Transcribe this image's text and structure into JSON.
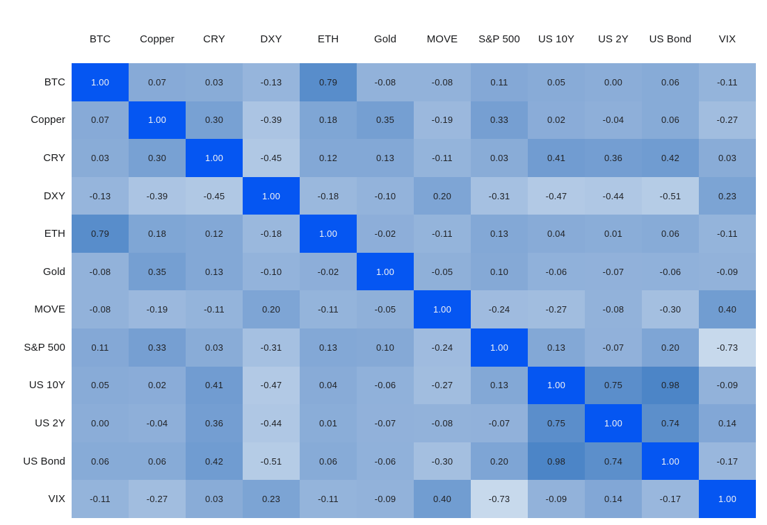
{
  "chart_data": {
    "type": "heatmap",
    "title": "",
    "subtitle": "",
    "legend": "none",
    "grid": "off",
    "value_format": "2 decimal places",
    "row_labels": [
      "BTC",
      "Copper",
      "CRY",
      "DXY",
      "ETH",
      "Gold",
      "MOVE",
      "S&P 500",
      "US 10Y",
      "US 2Y",
      "US Bond",
      "VIX"
    ],
    "col_labels": [
      "BTC",
      "Copper",
      "CRY",
      "DXY",
      "ETH",
      "Gold",
      "MOVE",
      "S&P 500",
      "US 10Y",
      "US 2Y",
      "US Bond",
      "VIX"
    ],
    "matrix": [
      [
        1.0,
        0.07,
        0.03,
        -0.13,
        0.79,
        -0.08,
        -0.08,
        0.11,
        0.05,
        0.0,
        0.06,
        -0.11
      ],
      [
        0.07,
        1.0,
        0.3,
        -0.39,
        0.18,
        0.35,
        -0.19,
        0.33,
        0.02,
        -0.04,
        0.06,
        -0.27
      ],
      [
        0.03,
        0.3,
        1.0,
        -0.45,
        0.12,
        0.13,
        -0.11,
        0.03,
        0.41,
        0.36,
        0.42,
        0.03
      ],
      [
        -0.13,
        -0.39,
        -0.45,
        1.0,
        -0.18,
        -0.1,
        0.2,
        -0.31,
        -0.47,
        -0.44,
        -0.51,
        0.23
      ],
      [
        0.79,
        0.18,
        0.12,
        -0.18,
        1.0,
        -0.02,
        -0.11,
        0.13,
        0.04,
        0.01,
        0.06,
        -0.11
      ],
      [
        -0.08,
        0.35,
        0.13,
        -0.1,
        -0.02,
        1.0,
        -0.05,
        0.1,
        -0.06,
        -0.07,
        -0.06,
        -0.09
      ],
      [
        -0.08,
        -0.19,
        -0.11,
        0.2,
        -0.11,
        -0.05,
        1.0,
        -0.24,
        -0.27,
        -0.08,
        -0.3,
        0.4
      ],
      [
        0.11,
        0.33,
        0.03,
        -0.31,
        0.13,
        0.1,
        -0.24,
        1.0,
        0.13,
        -0.07,
        0.2,
        -0.73
      ],
      [
        0.05,
        0.02,
        0.41,
        -0.47,
        0.04,
        -0.06,
        -0.27,
        0.13,
        1.0,
        0.75,
        0.98,
        -0.09
      ],
      [
        0.0,
        -0.04,
        0.36,
        -0.44,
        0.01,
        -0.07,
        -0.08,
        -0.07,
        0.75,
        1.0,
        0.74,
        0.14
      ],
      [
        0.06,
        0.06,
        0.42,
        -0.51,
        0.06,
        -0.06,
        -0.3,
        0.2,
        0.98,
        0.74,
        1.0,
        -0.17
      ],
      [
        -0.11,
        -0.27,
        0.03,
        0.23,
        -0.11,
        -0.09,
        0.4,
        -0.73,
        -0.09,
        0.14,
        -0.17,
        1.0
      ]
    ],
    "value_range_observed": [
      -0.73,
      1.0
    ],
    "colors": {
      "diagonal_cell": "#0556F2",
      "diagonal_text": "#F2F3F5",
      "cell_text": "#202226",
      "label_text": "#17181A",
      "background": "#FFFFFF",
      "ramp": {
        "neg_v": -0.8,
        "neg_rgb": [
          205,
          221,
          238
        ],
        "zero_rgb": [
          139,
          173,
          216
        ],
        "pos_v": 1.0,
        "pos_rgb": [
          75,
          132,
          199
        ]
      }
    }
  }
}
